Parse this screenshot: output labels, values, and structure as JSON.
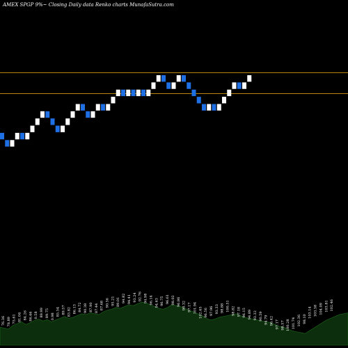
{
  "chart_data": {
    "type": "renko",
    "title": "AMEX  SPGP 9%~  Closing Daily data  Renko  charts MunafaSutra.com",
    "price_lines": [
      {
        "name": "upper-line",
        "value": 96.4,
        "color": "#b8860b"
      },
      {
        "name": "lower-line",
        "value": 93.54,
        "color": "#b8860b"
      }
    ],
    "brick_size": 1.0,
    "y_range": [
      76.5,
      104.5
    ],
    "colors": {
      "up": "#ffffff",
      "down": "#1f6fe5",
      "volume": "#0c2e0c",
      "volume_edge": "#1d6b1d",
      "background": "#000000"
    },
    "bricks": [
      {
        "dir": "down",
        "open": 88.0,
        "close": 87.0
      },
      {
        "dir": "down",
        "open": 87.0,
        "close": 86.0
      },
      {
        "dir": "up",
        "open": 86.0,
        "close": 87.0
      },
      {
        "dir": "up",
        "open": 87.0,
        "close": 88.0
      },
      {
        "dir": "down",
        "open": 88.0,
        "close": 87.0
      },
      {
        "dir": "up",
        "open": 87.0,
        "close": 88.0
      },
      {
        "dir": "up",
        "open": 88.0,
        "close": 89.0
      },
      {
        "dir": "up",
        "open": 89.0,
        "close": 90.0
      },
      {
        "dir": "up",
        "open": 90.0,
        "close": 91.0
      },
      {
        "dir": "down",
        "open": 91.0,
        "close": 90.0
      },
      {
        "dir": "down",
        "open": 90.0,
        "close": 89.0
      },
      {
        "dir": "down",
        "open": 89.0,
        "close": 88.0
      },
      {
        "dir": "up",
        "open": 88.0,
        "close": 89.0
      },
      {
        "dir": "up",
        "open": 89.0,
        "close": 90.0
      },
      {
        "dir": "up",
        "open": 90.0,
        "close": 91.0
      },
      {
        "dir": "up",
        "open": 91.0,
        "close": 92.0
      },
      {
        "dir": "down",
        "open": 92.0,
        "close": 91.0
      },
      {
        "dir": "down",
        "open": 91.0,
        "close": 90.0
      },
      {
        "dir": "up",
        "open": 90.0,
        "close": 91.0
      },
      {
        "dir": "up",
        "open": 91.0,
        "close": 92.0
      },
      {
        "dir": "down",
        "open": 92.0,
        "close": 91.0
      },
      {
        "dir": "up",
        "open": 91.0,
        "close": 92.0
      },
      {
        "dir": "up",
        "open": 92.0,
        "close": 93.0
      },
      {
        "dir": "up",
        "open": 93.0,
        "close": 94.0
      },
      {
        "dir": "down",
        "open": 94.0,
        "close": 93.0
      },
      {
        "dir": "up",
        "open": 93.0,
        "close": 94.0
      },
      {
        "dir": "down",
        "open": 94.0,
        "close": 93.0
      },
      {
        "dir": "up",
        "open": 93.0,
        "close": 94.0
      },
      {
        "dir": "down",
        "open": 94.0,
        "close": 93.0
      },
      {
        "dir": "up",
        "open": 93.0,
        "close": 94.0
      },
      {
        "dir": "up",
        "open": 94.0,
        "close": 95.0
      },
      {
        "dir": "up",
        "open": 95.0,
        "close": 96.0
      },
      {
        "dir": "down",
        "open": 96.0,
        "close": 95.0
      },
      {
        "dir": "down",
        "open": 95.0,
        "close": 94.0
      },
      {
        "dir": "up",
        "open": 94.0,
        "close": 95.0
      },
      {
        "dir": "up",
        "open": 95.0,
        "close": 96.0
      },
      {
        "dir": "down",
        "open": 96.0,
        "close": 95.0
      },
      {
        "dir": "down",
        "open": 95.0,
        "close": 94.0
      },
      {
        "dir": "down",
        "open": 94.0,
        "close": 93.0
      },
      {
        "dir": "down",
        "open": 93.0,
        "close": 92.0
      },
      {
        "dir": "down",
        "open": 92.0,
        "close": 91.0
      },
      {
        "dir": "up",
        "open": 91.0,
        "close": 92.0
      },
      {
        "dir": "down",
        "open": 92.0,
        "close": 91.0
      },
      {
        "dir": "up",
        "open": 91.0,
        "close": 92.0
      },
      {
        "dir": "up",
        "open": 92.0,
        "close": 93.0
      },
      {
        "dir": "up",
        "open": 93.0,
        "close": 94.0
      },
      {
        "dir": "up",
        "open": 94.0,
        "close": 95.0
      },
      {
        "dir": "down",
        "open": 95.0,
        "close": 94.0
      },
      {
        "dir": "up",
        "open": 94.0,
        "close": 95.0
      },
      {
        "dir": "up",
        "open": 95.0,
        "close": 96.0
      }
    ],
    "volume_labels": [
      "76.36",
      "78.89",
      "75.61",
      "81.04",
      "84.26",
      "86.66",
      "0.58",
      "89.99",
      "89.75",
      "0.98",
      "85.54",
      "89.57",
      "83.82",
      "86.13",
      "84.72",
      "90.38",
      "87.90",
      "87.44",
      "87.68",
      "90.56",
      "95.21",
      "89.01",
      "94.82",
      "94.41",
      "93.24",
      "92.76",
      "94.98",
      "96.14",
      "94.63",
      "96.75",
      "96.61",
      "98.02",
      "96.86",
      "98.32",
      "97.17",
      "101.94",
      "102.65",
      "96.56",
      "97.96",
      "93.33",
      "98.88",
      "100.51",
      "98.82",
      "97.18",
      "96.15",
      "94.89",
      "93.32",
      "90.59",
      "94.79",
      "96.42",
      "97.17",
      "98.57",
      "100.28",
      "101.74",
      "102.36",
      "98.10",
      "103.14",
      "103.58",
      "104.09",
      "103.81",
      "102.46"
    ],
    "volume_profile": [
      40,
      38,
      36,
      44,
      48,
      52,
      46,
      50,
      55,
      58,
      54,
      57,
      52,
      56,
      60,
      64,
      60,
      62,
      66,
      70,
      68,
      72,
      70,
      68,
      74,
      78,
      80,
      84,
      82,
      86,
      90,
      88,
      92,
      96,
      94,
      90,
      86,
      82,
      80,
      84,
      90,
      88,
      86,
      82,
      78,
      74,
      70,
      66,
      60,
      56,
      58,
      62,
      64,
      66,
      68,
      70,
      66,
      62,
      60,
      58,
      56,
      54,
      52,
      50,
      46,
      42,
      40,
      36,
      32,
      30,
      28,
      26,
      32,
      38,
      44,
      50,
      56,
      60,
      64,
      68,
      70,
      72
    ]
  }
}
